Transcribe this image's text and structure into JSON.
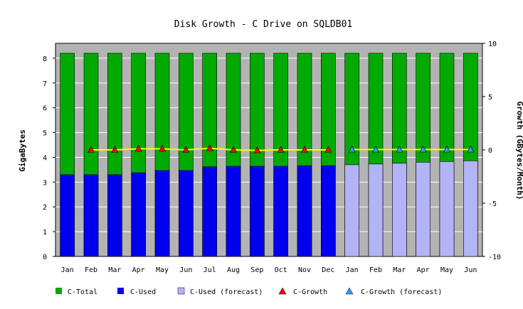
{
  "chart_data": {
    "type": "bar",
    "title": "Disk Growth - C Drive on SQLDB01",
    "ylabel": "GigaBytes",
    "y2label": "Growth (GBytes/Month)",
    "ylim": [
      0,
      8.6
    ],
    "y2lim": [
      -10,
      10
    ],
    "yticks": [
      0,
      1,
      2,
      3,
      4,
      5,
      6,
      7,
      8
    ],
    "y2ticks": [
      -10,
      -5,
      0,
      5,
      10
    ],
    "grid": true,
    "legend_position": "bottom",
    "categories": [
      "Jan",
      "Feb",
      "Mar",
      "Apr",
      "May",
      "Jun",
      "Jul",
      "Aug",
      "Sep",
      "Oct",
      "Nov",
      "Dec",
      "Jan",
      "Feb",
      "Mar",
      "Apr",
      "May",
      "Jun"
    ],
    "colors": {
      "plot_bg": "#b3b3b3",
      "total": "#00aa00",
      "used": "#0000ee",
      "used_forecast": "#b3b3f7",
      "growth_line": "#ffff00",
      "growth_marker": "#ff0000",
      "growth_forecast_marker": "#3399ff"
    },
    "series": [
      {
        "name": "C-Total",
        "kind": "bar",
        "values": [
          8.2,
          8.2,
          8.2,
          8.2,
          8.2,
          8.2,
          8.2,
          8.2,
          8.2,
          8.2,
          8.2,
          8.2,
          8.2,
          8.2,
          8.2,
          8.2,
          8.2,
          8.2
        ]
      },
      {
        "name": "C-Used",
        "kind": "bar",
        "values": [
          3.3,
          3.3,
          3.3,
          3.38,
          3.47,
          3.47,
          3.62,
          3.64,
          3.64,
          3.64,
          3.66,
          3.66,
          null,
          null,
          null,
          null,
          null,
          null
        ]
      },
      {
        "name": "C-Used (forecast)",
        "kind": "bar",
        "values": [
          null,
          null,
          null,
          null,
          null,
          null,
          null,
          null,
          null,
          null,
          null,
          null,
          3.7,
          3.73,
          3.76,
          3.8,
          3.83,
          3.86
        ]
      },
      {
        "name": "C-Growth",
        "kind": "line",
        "axis": "y2",
        "values": [
          null,
          0,
          0,
          0.1,
          0.1,
          0,
          0.15,
          0,
          -0.05,
          0,
          0,
          0,
          null,
          null,
          null,
          null,
          null,
          null
        ]
      },
      {
        "name": "C-Growth (forecast)",
        "kind": "line",
        "axis": "y2",
        "values": [
          null,
          null,
          null,
          null,
          null,
          null,
          null,
          null,
          null,
          null,
          null,
          null,
          0.03,
          0.03,
          0.03,
          0.03,
          0.03,
          0.03
        ]
      }
    ]
  }
}
